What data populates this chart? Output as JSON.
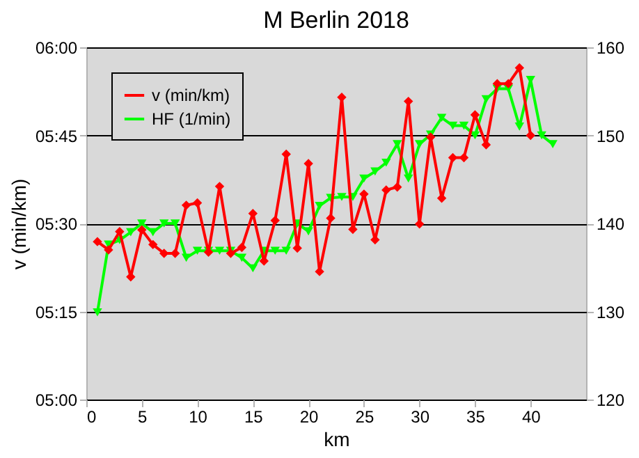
{
  "chart_data": {
    "type": "line",
    "title": "M Berlin 2018",
    "xlabel": "km",
    "ylabel": "v (min/km)",
    "x": [
      1,
      2,
      3,
      4,
      5,
      6,
      7,
      8,
      9,
      10,
      11,
      12,
      13,
      14,
      15,
      16,
      17,
      18,
      19,
      20,
      21,
      22,
      23,
      24,
      25,
      26,
      27,
      28,
      29,
      30,
      31,
      32,
      33,
      34,
      35,
      36,
      37,
      38,
      39,
      40,
      41,
      42
    ],
    "series": [
      {
        "name": "v (min/km)",
        "color": "#ff0000",
        "marker": "diamond",
        "values": [
          326.9,
          325.5,
          328.6,
          320.9,
          328.9,
          326.4,
          324.9,
          324.9,
          333.1,
          333.5,
          325.1,
          336.3,
          324.9,
          325.9,
          331.7,
          323.6,
          330.5,
          341.8,
          325.8,
          340.2,
          321.8,
          330.9,
          351.5,
          329.0,
          335.0,
          327.2,
          335.7,
          336.2,
          350.8,
          329.9,
          344.7,
          334.3,
          341.2,
          341.2,
          348.5,
          343.4,
          353.8,
          353.8,
          356.5,
          345.0,
          null,
          null
        ]
      },
      {
        "name": "HF (1/min)",
        "color": "#00ff00",
        "marker": "triangle",
        "axis": "y2",
        "values": [
          129.9,
          137.6,
          138.1,
          139.0,
          140.0,
          139.0,
          140.0,
          140.0,
          136.1,
          136.9,
          136.9,
          136.9,
          136.9,
          136.1,
          134.9,
          136.9,
          136.9,
          136.9,
          140.0,
          139.1,
          142.0,
          142.9,
          143.0,
          143.0,
          145.1,
          145.9,
          146.9,
          149.0,
          145.1,
          149.0,
          150.1,
          152.0,
          151.1,
          151.1,
          150.0,
          154.1,
          155.3,
          155.3,
          151.0,
          156.3,
          150.0,
          149.0
        ]
      }
    ],
    "xlim": [
      0,
      45
    ],
    "xticks": [
      0,
      5,
      10,
      15,
      20,
      25,
      30,
      35,
      40
    ],
    "ylim": [
      300,
      360
    ],
    "yticks": [
      {
        "value": 300,
        "label": "05:00"
      },
      {
        "value": 315,
        "label": "05:15"
      },
      {
        "value": 330,
        "label": "05:30"
      },
      {
        "value": 345,
        "label": "05:45"
      },
      {
        "value": 360,
        "label": "06:00"
      }
    ],
    "y2lim": [
      120,
      160
    ],
    "y2ticks": [
      120,
      130,
      140,
      150,
      160
    ],
    "grid": "y",
    "legend": "top left",
    "line_style": "solid"
  }
}
